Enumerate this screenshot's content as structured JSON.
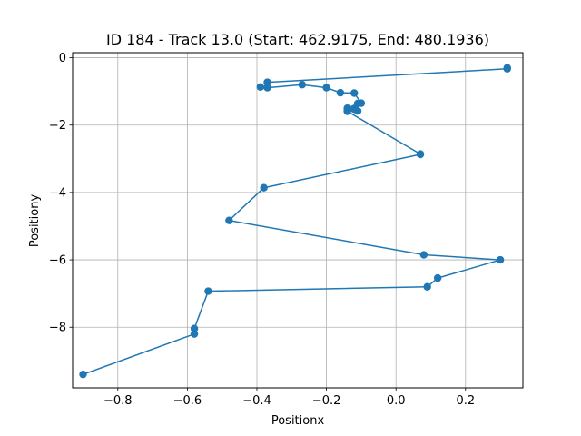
{
  "chart_data": {
    "type": "line",
    "title": "ID 184 - Track 13.0 (Start: 462.9175, End: 480.1936)",
    "xlabel": "Positionx",
    "ylabel": "Positiony",
    "xlim": [
      -0.93,
      0.365
    ],
    "ylim": [
      -9.8,
      0.15
    ],
    "grid": true,
    "xticks": [
      -0.8,
      -0.6,
      -0.4,
      -0.2,
      0.0,
      0.2
    ],
    "yticks": [
      0,
      -2,
      -4,
      -6,
      -8
    ],
    "xtick_labels": [
      "−0.8",
      "−0.6",
      "−0.4",
      "−0.2",
      "0.0",
      "0.2"
    ],
    "ytick_labels": [
      "0",
      "−2",
      "−4",
      "−6",
      "−8"
    ],
    "series": [
      {
        "color": "#1f77b4",
        "marker": "circle",
        "x": [
          0.32,
          0.32,
          -0.37,
          -0.37,
          -0.39,
          -0.37,
          -0.27,
          -0.2,
          -0.16,
          -0.12,
          -0.1,
          -0.11,
          -0.14,
          -0.12,
          -0.11,
          -0.14,
          0.07,
          0.07,
          -0.38,
          -0.48,
          0.08,
          0.3,
          0.12,
          0.09,
          -0.54,
          -0.58,
          -0.58,
          -0.9
        ],
        "y": [
          -0.3,
          -0.33,
          -0.73,
          -0.88,
          -0.87,
          -0.89,
          -0.8,
          -0.89,
          -1.04,
          -1.05,
          -1.35,
          -1.36,
          -1.5,
          -1.53,
          -1.58,
          -1.59,
          -2.86,
          -2.87,
          -3.86,
          -4.83,
          -5.85,
          -6.0,
          -6.54,
          -6.8,
          -6.93,
          -8.04,
          -8.2,
          -9.4
        ]
      }
    ]
  }
}
